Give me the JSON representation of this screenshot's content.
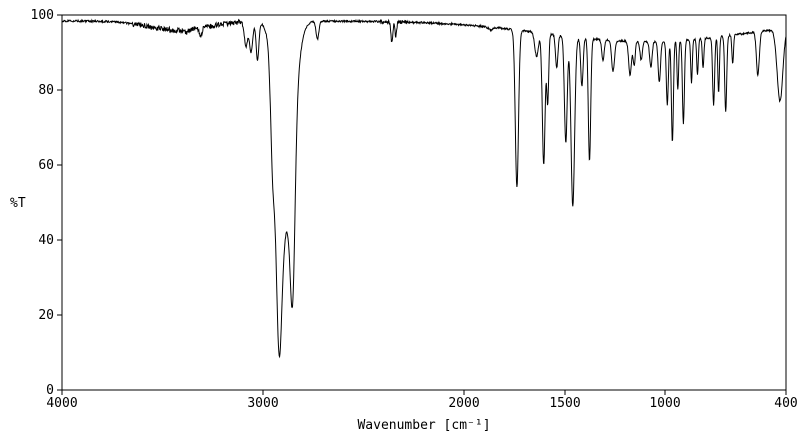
{
  "figure": {
    "background": "#ffffff",
    "frame_color": "#000000"
  },
  "chart_data": {
    "type": "line",
    "title": "",
    "xlabel": "Wavenumber [cm⁻¹]",
    "ylabel": "%T",
    "legend": "none",
    "grid": false,
    "line_color": "#000000",
    "x_axis": {
      "label": "Wavenumber [cm⁻¹]",
      "min": 400,
      "max": 4000,
      "reversed": true,
      "tick_values": [
        4000,
        3000,
        2000,
        1500,
        1000,
        400
      ],
      "tick_labels": [
        "4000",
        "3000",
        "2000",
        "1500",
        "1000",
        "400"
      ]
    },
    "y_axis": {
      "label": "%T",
      "min": 0,
      "max": 100,
      "tick_values": [
        0,
        20,
        40,
        60,
        80,
        100
      ],
      "tick_labels": [
        "0",
        "20",
        "40",
        "60",
        "80",
        "100"
      ]
    },
    "baseline": {
      "level": 98.4,
      "sag_center": 1100,
      "sag_depth": 5.5,
      "sag_width": 700
    },
    "noise": {
      "base_amplitude": 0.25,
      "regions": [
        {
          "from": 3650,
          "to": 3100,
          "amplitude": 0.7
        },
        {
          "from": 2420,
          "to": 2280,
          "amplitude": 0.55
        }
      ]
    },
    "peaks": [
      {
        "wn": 3420,
        "t": 96.0,
        "w": 150
      },
      {
        "wn": 3380,
        "t": 95.2,
        "w": 6
      },
      {
        "wn": 3310,
        "t": 94.2,
        "w": 6
      },
      {
        "wn": 3085,
        "t": 91.5,
        "w": 8
      },
      {
        "wn": 3060,
        "t": 90.0,
        "w": 8
      },
      {
        "wn": 3028,
        "t": 88.0,
        "w": 7
      },
      {
        "wn": 2953,
        "t": 55.0,
        "w": 10
      },
      {
        "wn": 2922,
        "t": 10.0,
        "w": 14
      },
      {
        "wn": 2890,
        "t": 40.0,
        "w": 40
      },
      {
        "wn": 2853,
        "t": 23.0,
        "w": 12
      },
      {
        "wn": 2730,
        "t": 93.5,
        "w": 7
      },
      {
        "wn": 2360,
        "t": 93.0,
        "w": 5
      },
      {
        "wn": 2340,
        "t": 94.2,
        "w": 4
      },
      {
        "wn": 1870,
        "t": 96.0,
        "w": 10
      },
      {
        "wn": 1738,
        "t": 54.0,
        "w": 8
      },
      {
        "wn": 1640,
        "t": 89.0,
        "w": 9
      },
      {
        "wn": 1605,
        "t": 60.0,
        "w": 7
      },
      {
        "wn": 1585,
        "t": 76.0,
        "w": 5
      },
      {
        "wn": 1540,
        "t": 86.0,
        "w": 6
      },
      {
        "wn": 1495,
        "t": 66.0,
        "w": 7
      },
      {
        "wn": 1460,
        "t": 49.0,
        "w": 9
      },
      {
        "wn": 1415,
        "t": 81.0,
        "w": 6
      },
      {
        "wn": 1377,
        "t": 61.0,
        "w": 6
      },
      {
        "wn": 1310,
        "t": 88.0,
        "w": 6
      },
      {
        "wn": 1260,
        "t": 85.0,
        "w": 7
      },
      {
        "wn": 1175,
        "t": 84.0,
        "w": 7
      },
      {
        "wn": 1155,
        "t": 86.5,
        "w": 5
      },
      {
        "wn": 1120,
        "t": 88.0,
        "w": 6
      },
      {
        "wn": 1072,
        "t": 86.0,
        "w": 6
      },
      {
        "wn": 1030,
        "t": 82.0,
        "w": 6
      },
      {
        "wn": 990,
        "t": 76.0,
        "w": 5
      },
      {
        "wn": 965,
        "t": 66.0,
        "w": 5
      },
      {
        "wn": 938,
        "t": 80.0,
        "w": 4
      },
      {
        "wn": 910,
        "t": 71.0,
        "w": 5
      },
      {
        "wn": 870,
        "t": 82.0,
        "w": 4
      },
      {
        "wn": 840,
        "t": 84.0,
        "w": 4
      },
      {
        "wn": 812,
        "t": 86.0,
        "w": 4
      },
      {
        "wn": 760,
        "t": 76.0,
        "w": 5
      },
      {
        "wn": 735,
        "t": 79.0,
        "w": 4
      },
      {
        "wn": 700,
        "t": 74.0,
        "w": 5
      },
      {
        "wn": 665,
        "t": 87.0,
        "w": 4
      },
      {
        "wn": 540,
        "t": 84.0,
        "w": 7
      },
      {
        "wn": 430,
        "t": 77.0,
        "w": 14
      }
    ]
  }
}
